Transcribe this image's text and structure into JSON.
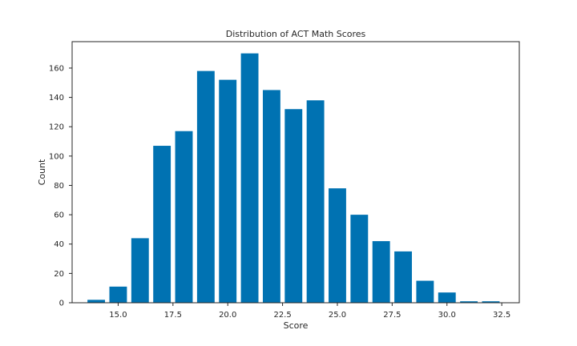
{
  "chart_data": {
    "type": "bar",
    "title": "Distribution of ACT Math Scores",
    "xlabel": "Score",
    "ylabel": "Count",
    "x": [
      14,
      15,
      16,
      17,
      18,
      19,
      20,
      21,
      22,
      23,
      24,
      25,
      26,
      27,
      28,
      29,
      30,
      31,
      32
    ],
    "values": [
      2,
      11,
      44,
      107,
      117,
      158,
      152,
      170,
      145,
      132,
      138,
      78,
      60,
      42,
      35,
      15,
      7,
      1,
      1
    ],
    "xlim": [
      12.9,
      33.3
    ],
    "ylim": [
      0,
      178
    ],
    "xticks": [
      15.0,
      17.5,
      20.0,
      22.5,
      25.0,
      27.5,
      30.0,
      32.5
    ],
    "xtick_labels": [
      "15.0",
      "17.5",
      "20.0",
      "22.5",
      "25.0",
      "27.5",
      "30.0",
      "32.5"
    ],
    "yticks": [
      0,
      20,
      40,
      60,
      80,
      100,
      120,
      140,
      160
    ],
    "ytick_labels": [
      "0",
      "20",
      "40",
      "60",
      "80",
      "100",
      "120",
      "140",
      "160"
    ],
    "bar_color": "#0072b2",
    "grid": false,
    "legend": "none"
  }
}
